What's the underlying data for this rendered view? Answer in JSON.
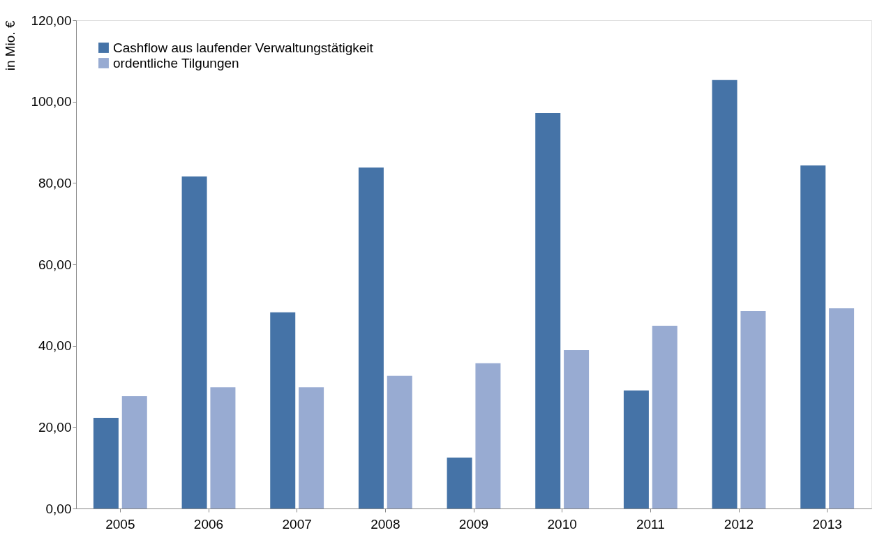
{
  "chart_data": {
    "type": "bar",
    "ylabel": "in Mio. €",
    "categories": [
      "2005",
      "2006",
      "2007",
      "2008",
      "2009",
      "2010",
      "2011",
      "2012",
      "2013"
    ],
    "series": [
      {
        "name": "Cashflow aus laufender Verwaltungstätigkeit",
        "color": "#4573a7",
        "values": [
          22.3,
          81.6,
          48.2,
          83.8,
          12.5,
          97.2,
          29.0,
          105.3,
          84.3
        ]
      },
      {
        "name": "ordentliche Tilgungen",
        "color": "#98abd2",
        "values": [
          27.6,
          29.8,
          29.8,
          32.6,
          35.7,
          38.9,
          44.9,
          48.5,
          49.2
        ]
      }
    ],
    "ylim": [
      0,
      120
    ],
    "yticks": [
      {
        "value": 0,
        "label": "0,00"
      },
      {
        "value": 20,
        "label": "20,00"
      },
      {
        "value": 40,
        "label": "40,00"
      },
      {
        "value": 60,
        "label": "60,00"
      },
      {
        "value": 80,
        "label": "80,00"
      },
      {
        "value": 100,
        "label": "100,00"
      },
      {
        "value": 120,
        "label": "120,00"
      }
    ],
    "grid": false,
    "legend": "top left"
  }
}
